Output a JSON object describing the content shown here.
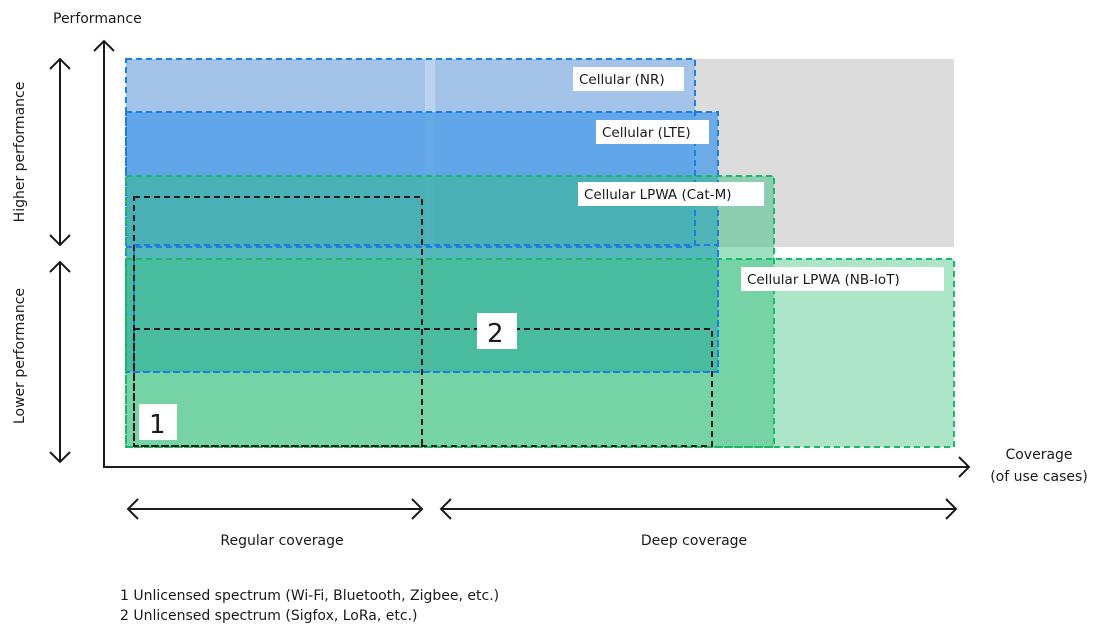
{
  "axes": {
    "y_label": "Performance",
    "x_label_line1": "Coverage",
    "x_label_line2": "(of use cases)",
    "higher_performance": "Higher performance",
    "lower_performance": "Lower performance",
    "regular_coverage": "Regular coverage",
    "deep_coverage": "Deep coverage"
  },
  "regions": {
    "nr": "Cellular (NR)",
    "lte": "Cellular (LTE)",
    "catm": "Cellular LPWA (Cat-M)",
    "nbiot": "Cellular LPWA (NB-IoT)",
    "unlicensed1_marker": "1",
    "unlicensed2_marker": "2"
  },
  "colors": {
    "blue": "#1a7fe0",
    "green": "#19b96a",
    "grey_area": "#dcdcdc",
    "dashed_black": "#1a1a1a"
  },
  "footnotes": {
    "note1": "1 Unlicensed spectrum (Wi-Fi, Bluetooth, Zigbee, etc.)",
    "note2": "2 Unlicensed spectrum (Sigfox, LoRa, etc.)"
  }
}
